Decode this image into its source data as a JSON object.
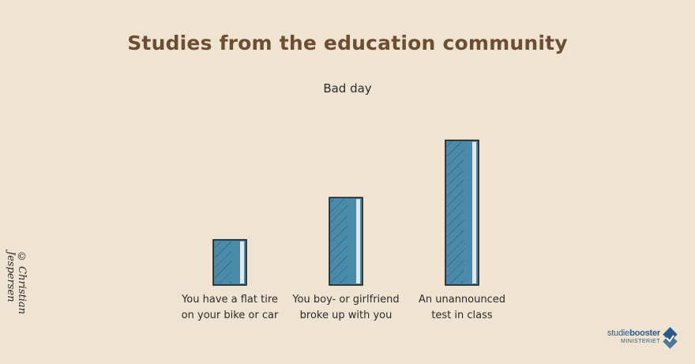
{
  "chart_data": {
    "type": "bar",
    "title": "Studies from the education community",
    "subtitle": "Bad day",
    "categories": [
      [
        "You have a flat tire",
        "on your bike or car"
      ],
      [
        "You boy- or girlfriend",
        "broke up with you"
      ],
      [
        "An unannounced",
        "test in class"
      ]
    ],
    "values": [
      30,
      58,
      96
    ],
    "ylim": [
      0,
      100
    ],
    "grid": false,
    "bar_color": "#4a8aaa"
  },
  "credit": {
    "copyright_symbol": "©",
    "author": "Christian Jespersen"
  },
  "logo": {
    "name_part1": "studie",
    "name_part2": "booster",
    "sub": "MINISTERIET",
    "color": "#2a5a8c"
  }
}
